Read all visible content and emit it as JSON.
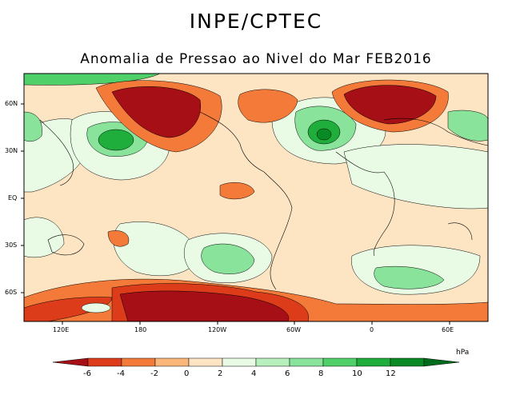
{
  "title": "INPE/CPTEC",
  "subtitle": "Anomalia de Pressao ao Nivel do Mar FEB2016",
  "axes": {
    "lat_labels": [
      "60N",
      "30N",
      "EQ",
      "30S",
      "60S"
    ],
    "lon_labels": [
      "120E",
      "180",
      "120W",
      "60W",
      "0",
      "60E"
    ]
  },
  "colorbar": {
    "units": "hPa",
    "labels": [
      "-6",
      "-4",
      "-2",
      "0",
      "2",
      "4",
      "6",
      "8",
      "10",
      "12"
    ],
    "colors": [
      "#a50f15",
      "#dd3c1a",
      "#f47a3a",
      "#fbb77a",
      "#fde5c4",
      "#e9fbe4",
      "#b8f0bd",
      "#8ae39a",
      "#4fd068",
      "#1fae3c",
      "#0a8a25",
      "#006b1a"
    ]
  },
  "regions": {
    "land": "#ffffff",
    "ocean_bg": "#fde5c4"
  }
}
